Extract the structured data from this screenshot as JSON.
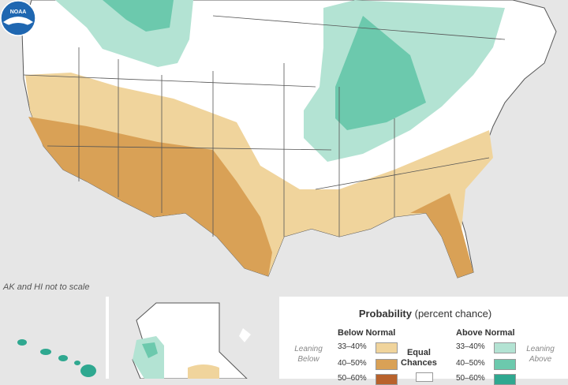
{
  "map": {
    "scale_note": "AK and HI not to scale",
    "logo_text": "NOAA"
  },
  "legend": {
    "title_bold": "Probability",
    "title_rest": "(percent chance)",
    "below_header": "Below Normal",
    "above_header": "Above Normal",
    "leaning_below": [
      "Leaning",
      "Below"
    ],
    "leaning_above": [
      "Leaning",
      "Above"
    ],
    "equal_chances": [
      "Equal",
      "Chances"
    ],
    "below_items": [
      {
        "label": "33–40%",
        "color": "#f0d49c"
      },
      {
        "label": "40–50%",
        "color": "#d9a156"
      },
      {
        "label": "50–60%",
        "color": "#b8622c"
      }
    ],
    "above_items": [
      {
        "label": "33–40%",
        "color": "#b3e3d3"
      },
      {
        "label": "40–50%",
        "color": "#6cc9ad"
      },
      {
        "label": "50–60%",
        "color": "#2fa890"
      }
    ]
  },
  "colors": {
    "land": "#ffffff",
    "background": "#e6e6e6",
    "border": "#555555",
    "below_33_40": "#f0d49c",
    "below_40_50": "#d9a156",
    "above_33_40": "#b3e3d3",
    "above_40_50": "#6cc9ad",
    "noaa_blue": "#1f67b1"
  }
}
